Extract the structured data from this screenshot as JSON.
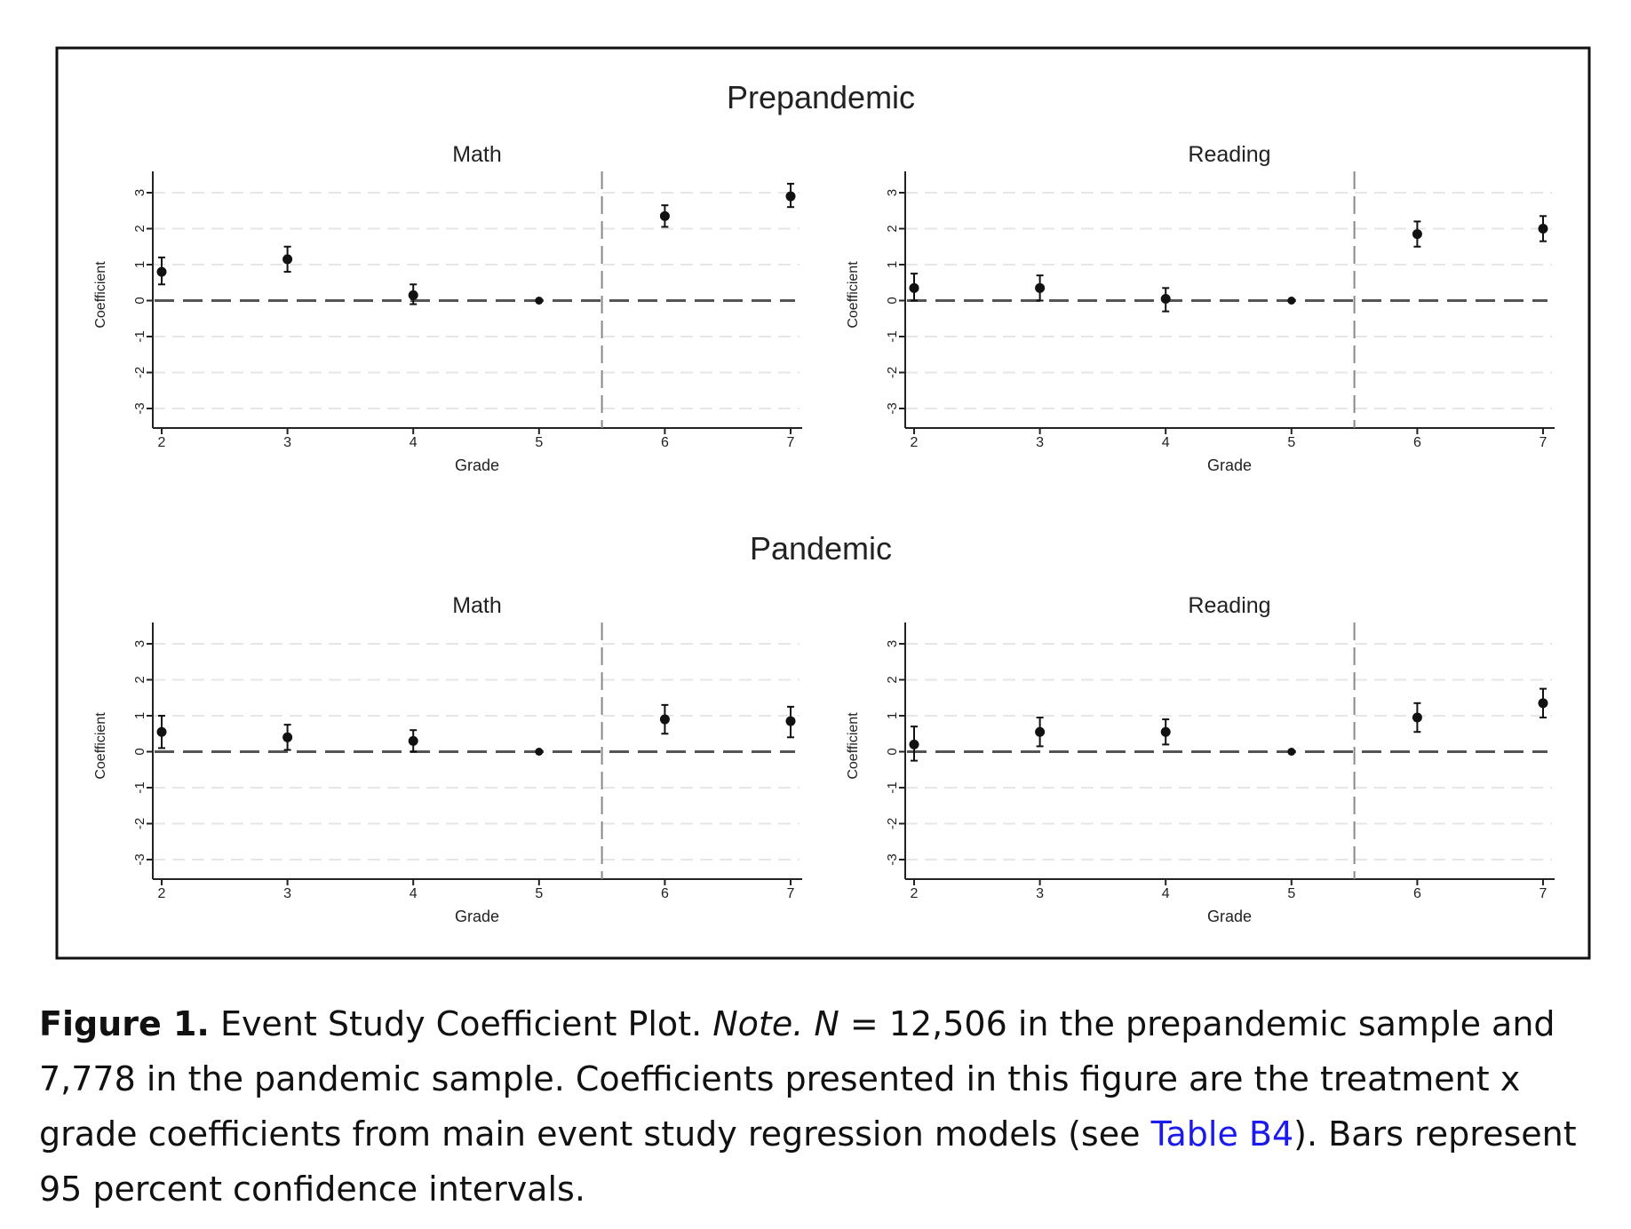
{
  "chart_data": [
    {
      "type": "scatter",
      "group": "Prepandemic",
      "title": "Math",
      "xlabel": "Grade",
      "ylabel": "Coefficient",
      "x": [
        2,
        3,
        4,
        5,
        6,
        7
      ],
      "y": [
        0.8,
        1.15,
        0.15,
        0,
        2.35,
        2.9
      ],
      "ci_low": [
        0.45,
        0.8,
        -0.1,
        0,
        2.05,
        2.6
      ],
      "ci_high": [
        1.2,
        1.5,
        0.45,
        0,
        2.65,
        3.25
      ],
      "xlim": [
        2,
        7
      ],
      "ylim": [
        -3,
        3
      ],
      "xticks": [
        "2",
        "3",
        "4",
        "5",
        "6",
        "7"
      ],
      "yticks": [
        "3",
        "2",
        "1",
        "0",
        "-1",
        "-2",
        "-3"
      ],
      "reference_lines": {
        "horizontal": 0,
        "vertical": 5.5
      },
      "grid": "horizontal dashed"
    },
    {
      "type": "scatter",
      "group": "Prepandemic",
      "title": "Reading",
      "xlabel": "Grade",
      "ylabel": "Coefficient",
      "x": [
        2,
        3,
        4,
        5,
        6,
        7
      ],
      "y": [
        0.35,
        0.35,
        0.05,
        0,
        1.85,
        2.0
      ],
      "ci_low": [
        0.0,
        0.0,
        -0.3,
        0,
        1.5,
        1.65
      ],
      "ci_high": [
        0.75,
        0.7,
        0.35,
        0,
        2.2,
        2.35
      ],
      "xlim": [
        2,
        7
      ],
      "ylim": [
        -3,
        3
      ],
      "xticks": [
        "2",
        "3",
        "4",
        "5",
        "6",
        "7"
      ],
      "yticks": [
        "3",
        "2",
        "1",
        "0",
        "-1",
        "-2",
        "-3"
      ],
      "reference_lines": {
        "horizontal": 0,
        "vertical": 5.5
      },
      "grid": "horizontal dashed"
    },
    {
      "type": "scatter",
      "group": "Pandemic",
      "title": "Math",
      "xlabel": "Grade",
      "ylabel": "Coefficient",
      "x": [
        2,
        3,
        4,
        5,
        6,
        7
      ],
      "y": [
        0.55,
        0.4,
        0.3,
        0,
        0.9,
        0.85
      ],
      "ci_low": [
        0.1,
        0.05,
        0.0,
        0,
        0.5,
        0.4
      ],
      "ci_high": [
        1.0,
        0.75,
        0.6,
        0,
        1.3,
        1.25
      ],
      "xlim": [
        2,
        7
      ],
      "ylim": [
        -3,
        3
      ],
      "xticks": [
        "2",
        "3",
        "4",
        "5",
        "6",
        "7"
      ],
      "yticks": [
        "3",
        "2",
        "1",
        "0",
        "-1",
        "-2",
        "-3"
      ],
      "reference_lines": {
        "horizontal": 0,
        "vertical": 5.5
      },
      "grid": "horizontal dashed"
    },
    {
      "type": "scatter",
      "group": "Pandemic",
      "title": "Reading",
      "xlabel": "Grade",
      "ylabel": "Coefficient",
      "x": [
        2,
        3,
        4,
        5,
        6,
        7
      ],
      "y": [
        0.2,
        0.55,
        0.55,
        0,
        0.95,
        1.35
      ],
      "ci_low": [
        -0.25,
        0.15,
        0.2,
        0,
        0.55,
        0.95
      ],
      "ci_high": [
        0.7,
        0.95,
        0.9,
        0,
        1.35,
        1.75
      ],
      "xlim": [
        2,
        7
      ],
      "ylim": [
        -3,
        3
      ],
      "xticks": [
        "2",
        "3",
        "4",
        "5",
        "6",
        "7"
      ],
      "yticks": [
        "3",
        "2",
        "1",
        "0",
        "-1",
        "-2",
        "-3"
      ],
      "reference_lines": {
        "horizontal": 0,
        "vertical": 5.5
      },
      "grid": "horizontal dashed"
    }
  ],
  "group_titles": [
    "Prepandemic",
    "Pandemic"
  ],
  "caption": {
    "label": "Figure 1.",
    "text1": " Event Study Coefficient Plot. ",
    "note": "Note. N",
    "text2": " = 12,506 in the prepandemic sample and 7,778 in the pandemic sample. Coefficients presented in this figure are the treatment x grade coefficients from main event study regression models (see ",
    "link": "Table B4",
    "text3": "). Bars represent 95 percent confidence intervals.",
    "link_color": "#1a1aee"
  }
}
